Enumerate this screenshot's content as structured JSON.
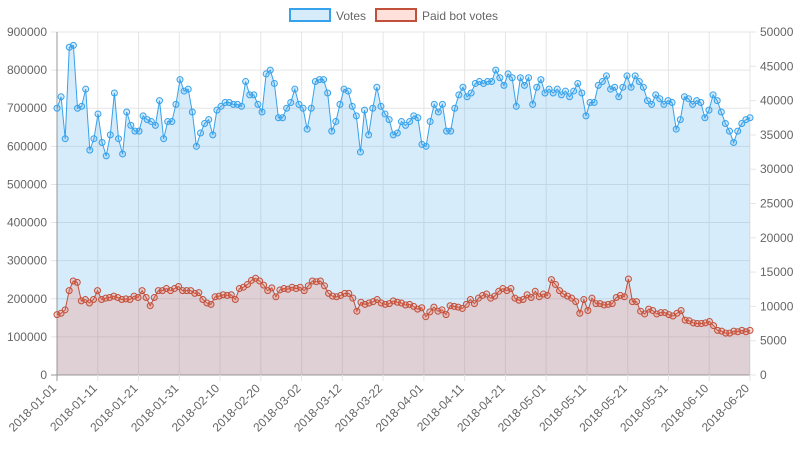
{
  "chart_data": {
    "type": "area",
    "start_date": "2018-01-01",
    "end_date": "2018-06-20",
    "x_tick_labels": [
      "2018-01-01",
      "2018-01-11",
      "2018-01-21",
      "2018-01-31",
      "2018-02-10",
      "2018-02-20",
      "2018-03-02",
      "2018-03-12",
      "2018-03-22",
      "2018-04-01",
      "2018-04-11",
      "2018-04-21",
      "2018-05-01",
      "2018-05-11",
      "2018-05-21",
      "2018-05-31",
      "2018-06-10",
      "2018-06-20"
    ],
    "y_left": {
      "ticks": [
        "0",
        "100000",
        "200000",
        "300000",
        "400000",
        "500000",
        "600000",
        "700000",
        "800000",
        "900000"
      ],
      "ylim": [
        0,
        900000
      ]
    },
    "y_right": {
      "ticks": [
        "0",
        "5000",
        "10000",
        "15000",
        "20000",
        "25000",
        "30000",
        "35000",
        "40000",
        "45000",
        "50000"
      ],
      "ylim": [
        0,
        50000
      ]
    },
    "grid": true,
    "legend_position": "top",
    "series": [
      {
        "name": "Votes",
        "axis": "left",
        "color": "#36a2eb",
        "fill": "rgba(54,162,235,0.2)",
        "values": [
          700000,
          730000,
          620000,
          860000,
          865000,
          700000,
          705000,
          750000,
          590000,
          620000,
          685000,
          610000,
          575000,
          630000,
          740000,
          620000,
          580000,
          690000,
          655000,
          640000,
          640000,
          680000,
          670000,
          665000,
          655000,
          720000,
          620000,
          665000,
          665000,
          710000,
          775000,
          745000,
          750000,
          690000,
          600000,
          635000,
          660000,
          670000,
          630000,
          695000,
          705000,
          715000,
          715000,
          710000,
          710000,
          705000,
          770000,
          735000,
          735000,
          710000,
          690000,
          790000,
          800000,
          765000,
          675000,
          675000,
          700000,
          715000,
          750000,
          710000,
          700000,
          645000,
          700000,
          770000,
          775000,
          775000,
          740000,
          640000,
          665000,
          710000,
          750000,
          745000,
          705000,
          680000,
          585000,
          695000,
          630000,
          700000,
          755000,
          705000,
          685000,
          670000,
          630000,
          635000,
          665000,
          655000,
          665000,
          680000,
          675000,
          605000,
          600000,
          665000,
          710000,
          690000,
          710000,
          640000,
          640000,
          700000,
          735000,
          755000,
          730000,
          740000,
          765000,
          770000,
          765000,
          770000,
          770000,
          800000,
          780000,
          760000,
          790000,
          780000,
          705000,
          780000,
          760000,
          780000,
          710000,
          755000,
          775000,
          740000,
          750000,
          740000,
          750000,
          735000,
          745000,
          730000,
          745000,
          765000,
          740000,
          680000,
          715000,
          715000,
          760000,
          770000,
          785000,
          750000,
          755000,
          730000,
          755000,
          785000,
          755000,
          785000,
          770000,
          755000,
          720000,
          710000,
          735000,
          725000,
          710000,
          720000,
          715000,
          645000,
          670000,
          730000,
          725000,
          710000,
          720000,
          715000,
          675000,
          695000,
          735000,
          720000,
          690000,
          660000,
          640000,
          610000,
          640000,
          660000,
          670000,
          675000
        ]
      },
      {
        "name": "Paid bot votes",
        "axis": "right",
        "color": "#c0503a",
        "fill": "rgba(255,99,71,0.2)",
        "values": [
          8800,
          9000,
          9500,
          12300,
          13700,
          13500,
          10800,
          11000,
          10500,
          11000,
          12300,
          11000,
          11200,
          11300,
          11500,
          11300,
          11000,
          11100,
          11000,
          11500,
          11300,
          12300,
          11300,
          10100,
          11300,
          12300,
          12300,
          12600,
          12300,
          12600,
          12900,
          12300,
          12300,
          12300,
          11900,
          12000,
          11000,
          10500,
          10300,
          11400,
          11500,
          11700,
          11600,
          11700,
          11000,
          12600,
          12800,
          13200,
          13800,
          14100,
          13700,
          13100,
          12300,
          12700,
          11400,
          12400,
          12600,
          12500,
          12800,
          12600,
          12800,
          12300,
          13000,
          13700,
          13600,
          13700,
          13000,
          11900,
          11500,
          11400,
          11600,
          11900,
          11900,
          11200,
          9300,
          10600,
          10300,
          10500,
          10700,
          11000,
          10500,
          10300,
          10400,
          10800,
          10600,
          10500,
          10200,
          10300,
          10000,
          9600,
          9800,
          8500,
          9200,
          9900,
          9300,
          9500,
          8800,
          10100,
          10000,
          9900,
          9700,
          10300,
          11000,
          10400,
          11200,
          11600,
          11800,
          11200,
          11500,
          12200,
          12600,
          12300,
          12600,
          11200,
          10900,
          11000,
          11700,
          11300,
          12200,
          11400,
          11800,
          11600,
          13900,
          13200,
          12300,
          11800,
          11500,
          11200,
          10700,
          9000,
          11000,
          9400,
          11200,
          10400,
          10400,
          10200,
          10300,
          10400,
          11300,
          11600,
          11400,
          14000,
          10700,
          10700,
          9300,
          8900,
          9600,
          9400,
          8900,
          9100,
          9100,
          8800,
          8600,
          9000,
          9400,
          8000,
          7900,
          7600,
          7500,
          7500,
          7600,
          7800,
          7200,
          6500,
          6400,
          6100,
          6100,
          6400,
          6300,
          6500,
          6300,
          6500
        ]
      }
    ]
  }
}
